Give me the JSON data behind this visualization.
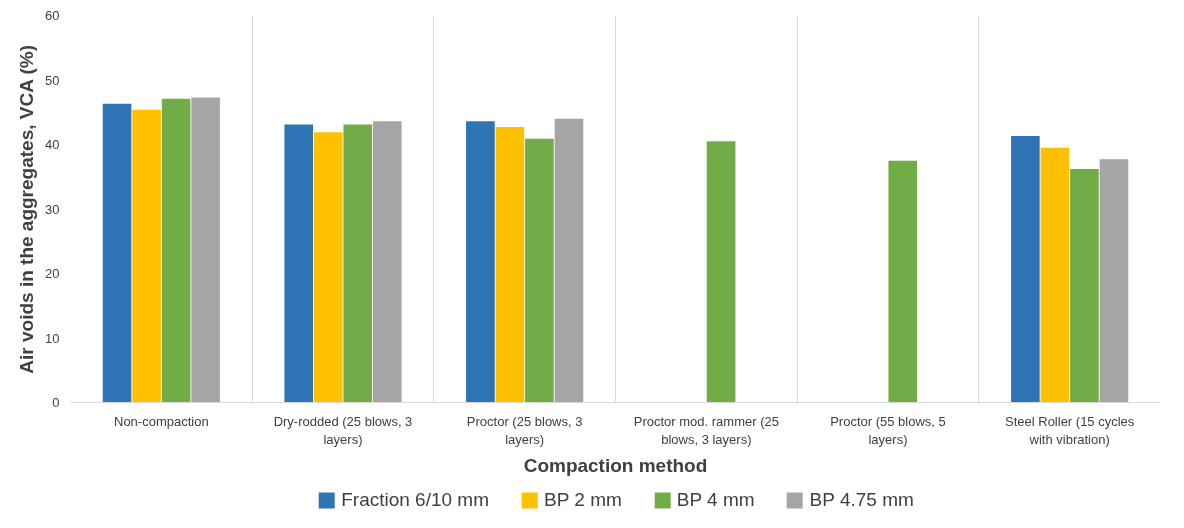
{
  "chart_data": {
    "type": "bar",
    "xlabel": "Compaction method",
    "ylabel": "Air voids in the aggregates, VCA (%)",
    "categories": [
      "Non-compaction",
      "Dry-rodded (25 blows, 3 layers)",
      "Proctor (25 blows, 3 layers)",
      "Proctor mod. rammer (25 blows, 3 layers)",
      "Proctor (55 blows, 5 layers)",
      "Steel Roller (15 cycles with vibration)"
    ],
    "series": [
      {
        "name": "Fraction 6/10 mm",
        "color": "#2e75b6",
        "values": [
          46.3,
          43.1,
          43.6,
          null,
          null,
          41.3
        ]
      },
      {
        "name": "BP 2 mm",
        "color": "#ffc000",
        "values": [
          45.4,
          41.9,
          42.7,
          null,
          null,
          39.5
        ]
      },
      {
        "name": "BP 4 mm",
        "color": "#70ad47",
        "values": [
          47.1,
          43.1,
          40.9,
          40.5,
          37.5,
          36.2
        ]
      },
      {
        "name": "BP 4.75 mm",
        "color": "#a5a5a5",
        "values": [
          47.3,
          43.6,
          44.0,
          null,
          null,
          37.7
        ]
      }
    ],
    "ylim": [
      0,
      60
    ],
    "yticks": [
      0,
      10,
      20,
      30,
      40,
      50,
      60
    ],
    "grid": "x",
    "legend": "bottom"
  }
}
